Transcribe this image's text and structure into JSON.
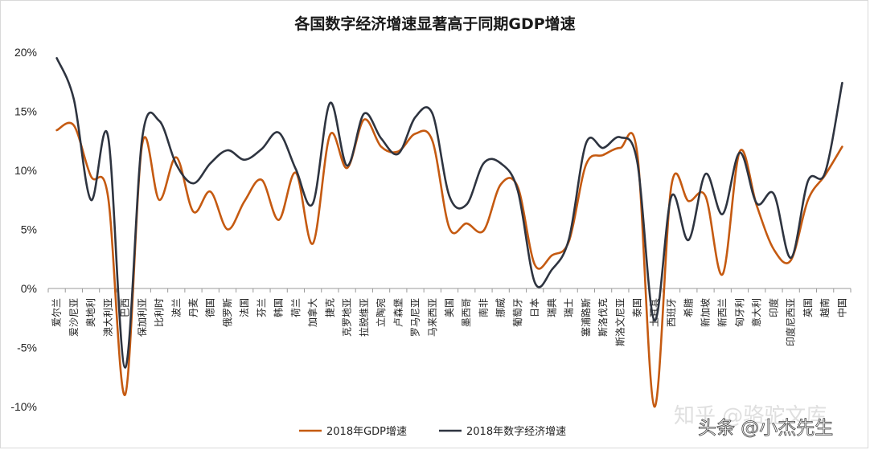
{
  "chart_data": {
    "type": "line",
    "title": "各国数字经济增速显著高于同期GDP增速",
    "xlabel": "",
    "ylabel": "",
    "ylim": [
      -10,
      20
    ],
    "yticks": [
      "20%",
      "15%",
      "10%",
      "5%",
      "0%",
      "-5%",
      "-10%"
    ],
    "ytick_values": [
      20,
      15,
      10,
      5,
      0,
      -5,
      -10
    ],
    "grid": false,
    "legend": "bottom",
    "categories": [
      "爱尔兰",
      "爱沙尼亚",
      "奥地利",
      "澳大利亚",
      "巴西",
      "保加利亚",
      "比利时",
      "波兰",
      "丹麦",
      "德国",
      "俄罗斯",
      "法国",
      "芬兰",
      "韩国",
      "荷兰",
      "加拿大",
      "捷克",
      "克罗地亚",
      "拉脱维亚",
      "立陶宛",
      "卢森堡",
      "罗马尼亚",
      "马来西亚",
      "美国",
      "墨西哥",
      "南非",
      "挪威",
      "葡萄牙",
      "日本",
      "瑞典",
      "瑞士",
      "塞浦路斯",
      "斯洛伐克",
      "斯洛文尼亚",
      "泰国",
      "土耳其",
      "西班牙",
      "希腊",
      "新加坡",
      "新西兰",
      "匈牙利",
      "意大利",
      "印度",
      "印度尼西亚",
      "英国",
      "越南",
      "中国"
    ],
    "series": [
      {
        "name": "2018年GDP增速",
        "color": "#c55a11",
        "values": [
          13.4,
          13.8,
          9.5,
          7.8,
          -9,
          12.2,
          7.5,
          11.1,
          6.5,
          8.2,
          5.0,
          7.4,
          9.2,
          5.8,
          9.8,
          3.8,
          13.0,
          10.2,
          14.3,
          12.0,
          11.6,
          13.1,
          12.5,
          5.1,
          5.5,
          4.9,
          8.8,
          8.6,
          2.0,
          2.8,
          4.0,
          10.5,
          11.3,
          11.9,
          11.4,
          -10,
          8.7,
          7.4,
          7.8,
          1.2,
          11.6,
          7.0,
          3.3,
          2.4,
          7.5,
          9.6,
          12.0
        ]
      },
      {
        "name": "2018年数字经济增速",
        "color": "#2e3440",
        "values": [
          19.5,
          16.0,
          7.5,
          12.9,
          -6.7,
          12.7,
          14.2,
          10.5,
          8.9,
          10.6,
          11.7,
          10.9,
          11.8,
          13.2,
          10.1,
          7.2,
          15.7,
          10.4,
          14.8,
          12.7,
          11.4,
          14.5,
          14.8,
          7.8,
          7.1,
          10.6,
          10.6,
          8.3,
          0.5,
          1.6,
          4.2,
          12.3,
          11.9,
          12.8,
          10.7,
          -2.7,
          7.8,
          4.1,
          9.7,
          6.3,
          11.5,
          7.2,
          8.0,
          2.6,
          9.1,
          9.8,
          17.4
        ]
      }
    ]
  },
  "watermark": {
    "zhihu": "知乎 @骆驼文库",
    "toutiao": "头条 @小杰先生"
  }
}
